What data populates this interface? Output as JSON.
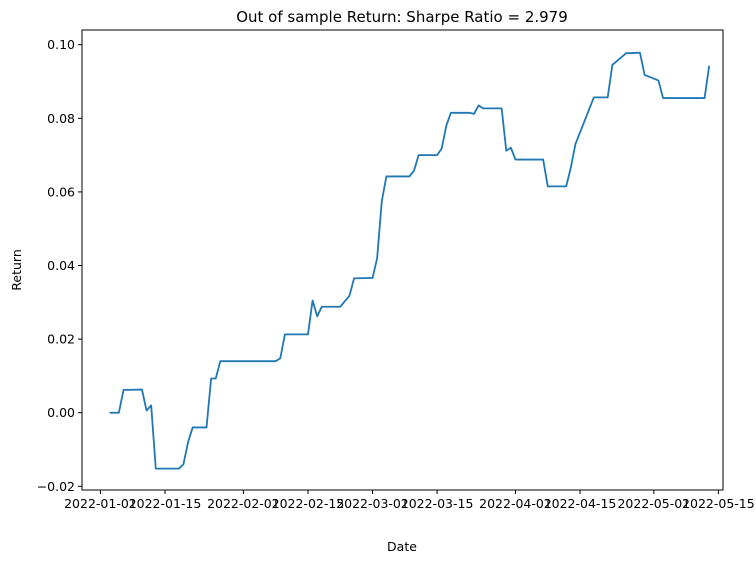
{
  "chart_data": {
    "type": "line",
    "title": "Out of sample Return: Sharpe Ratio = 2.979",
    "xlabel": "Date",
    "ylabel": "Return",
    "grid": false,
    "legend": "none",
    "xlim": [
      "2021-12-28",
      "2022-05-16"
    ],
    "ylim": [
      -0.021,
      0.104
    ],
    "x_ticks": [
      "2022-01-01",
      "2022-01-15",
      "2022-02-01",
      "2022-02-15",
      "2022-03-01",
      "2022-03-15",
      "2022-04-01",
      "2022-04-15",
      "2022-05-01",
      "2022-05-15"
    ],
    "y_ticks": [
      -0.02,
      0.0,
      0.02,
      0.04,
      0.06,
      0.08,
      0.1
    ],
    "y_tick_labels": [
      "−0.02",
      "0.00",
      "0.02",
      "0.04",
      "0.06",
      "0.08",
      "0.10"
    ],
    "series": [
      {
        "color": "#1f77b4",
        "x": [
          "2022-01-03",
          "2022-01-04",
          "2022-01-05",
          "2022-01-06",
          "2022-01-07",
          "2022-01-10",
          "2022-01-11",
          "2022-01-12",
          "2022-01-13",
          "2022-01-14",
          "2022-01-18",
          "2022-01-19",
          "2022-01-20",
          "2022-01-21",
          "2022-01-24",
          "2022-01-25",
          "2022-01-26",
          "2022-01-27",
          "2022-01-28",
          "2022-01-31",
          "2022-02-01",
          "2022-02-02",
          "2022-02-03",
          "2022-02-04",
          "2022-02-07",
          "2022-02-08",
          "2022-02-09",
          "2022-02-10",
          "2022-02-11",
          "2022-02-14",
          "2022-02-15",
          "2022-02-16",
          "2022-02-17",
          "2022-02-18",
          "2022-02-22",
          "2022-02-23",
          "2022-02-24",
          "2022-02-25",
          "2022-02-28",
          "2022-03-01",
          "2022-03-02",
          "2022-03-03",
          "2022-03-04",
          "2022-03-07",
          "2022-03-08",
          "2022-03-09",
          "2022-03-10",
          "2022-03-11",
          "2022-03-14",
          "2022-03-15",
          "2022-03-16",
          "2022-03-17",
          "2022-03-18",
          "2022-03-21",
          "2022-03-22",
          "2022-03-23",
          "2022-03-24",
          "2022-03-25",
          "2022-03-28",
          "2022-03-29",
          "2022-03-30",
          "2022-03-31",
          "2022-04-01",
          "2022-04-04",
          "2022-04-05",
          "2022-04-06",
          "2022-04-07",
          "2022-04-08",
          "2022-04-11",
          "2022-04-12",
          "2022-04-13",
          "2022-04-14",
          "2022-04-18",
          "2022-04-19",
          "2022-04-20",
          "2022-04-21",
          "2022-04-22",
          "2022-04-25",
          "2022-04-26",
          "2022-04-27",
          "2022-04-28",
          "2022-04-29",
          "2022-05-02",
          "2022-05-03",
          "2022-05-04",
          "2022-05-05",
          "2022-05-06",
          "2022-05-09",
          "2022-05-10",
          "2022-05-11",
          "2022-05-12",
          "2022-05-13"
        ],
        "y": [
          0.0,
          0.0,
          0.0,
          0.0062,
          0.0062,
          0.0063,
          0.0006,
          0.002,
          -0.0152,
          -0.0152,
          -0.0152,
          -0.014,
          -0.008,
          -0.004,
          -0.004,
          0.0093,
          0.0093,
          0.014,
          0.014,
          0.014,
          0.014,
          0.014,
          0.014,
          0.014,
          0.014,
          0.014,
          0.0148,
          0.0213,
          0.0213,
          0.0213,
          0.0213,
          0.0305,
          0.0262,
          0.0288,
          0.0288,
          0.0303,
          0.0318,
          0.0365,
          0.0366,
          0.0366,
          0.042,
          0.0574,
          0.0642,
          0.0642,
          0.0642,
          0.0642,
          0.0658,
          0.07,
          0.07,
          0.07,
          0.0718,
          0.078,
          0.0815,
          0.0815,
          0.0815,
          0.0812,
          0.0835,
          0.0827,
          0.0827,
          0.0827,
          0.0712,
          0.072,
          0.0688,
          0.0688,
          0.0688,
          0.0688,
          0.0688,
          0.0615,
          0.0615,
          0.0615,
          0.0666,
          0.073,
          0.0857,
          0.0857,
          0.0857,
          0.0857,
          0.0945,
          0.0977,
          0.0977,
          0.0978,
          0.0978,
          0.0918,
          0.0903,
          0.0855,
          0.0855,
          0.0855,
          0.0855,
          0.0855,
          0.0855,
          0.0855,
          0.0855,
          0.0943
        ]
      }
    ]
  }
}
